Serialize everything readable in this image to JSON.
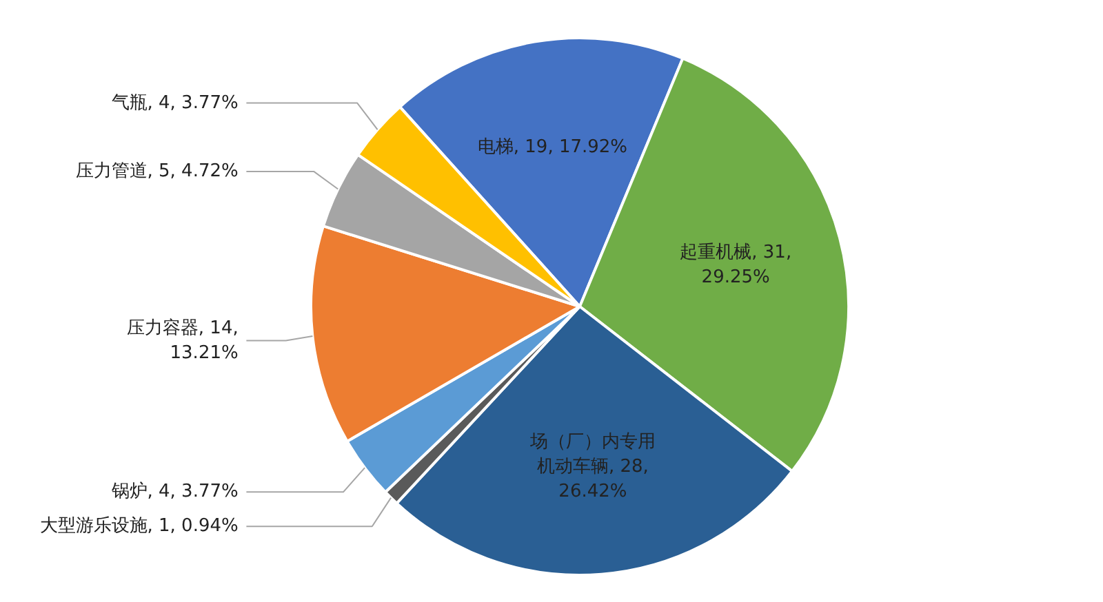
{
  "chart_data": {
    "type": "pie",
    "categories": [
      "电梯",
      "起重机械",
      "场（厂）内专用机动车辆",
      "大型游乐设施",
      "锅炉",
      "压力容器",
      "压力管道",
      "气瓶"
    ],
    "values": [
      19,
      31,
      28,
      1,
      4,
      14,
      5,
      4
    ],
    "colors": [
      "#4472c4",
      "#70ad47",
      "#2a5f94",
      "#5a5a5a",
      "#5b9bd5",
      "#ed7d31",
      "#a5a5a5",
      "#ffc000"
    ],
    "value_labels": [
      "19, 17.92%",
      "31,\n29.25%",
      "28,\n26.42%",
      "1, 0.94%",
      "4, 3.77%",
      "14,\n13.21%",
      "5, 4.72%",
      "4, 3.77%"
    ]
  }
}
